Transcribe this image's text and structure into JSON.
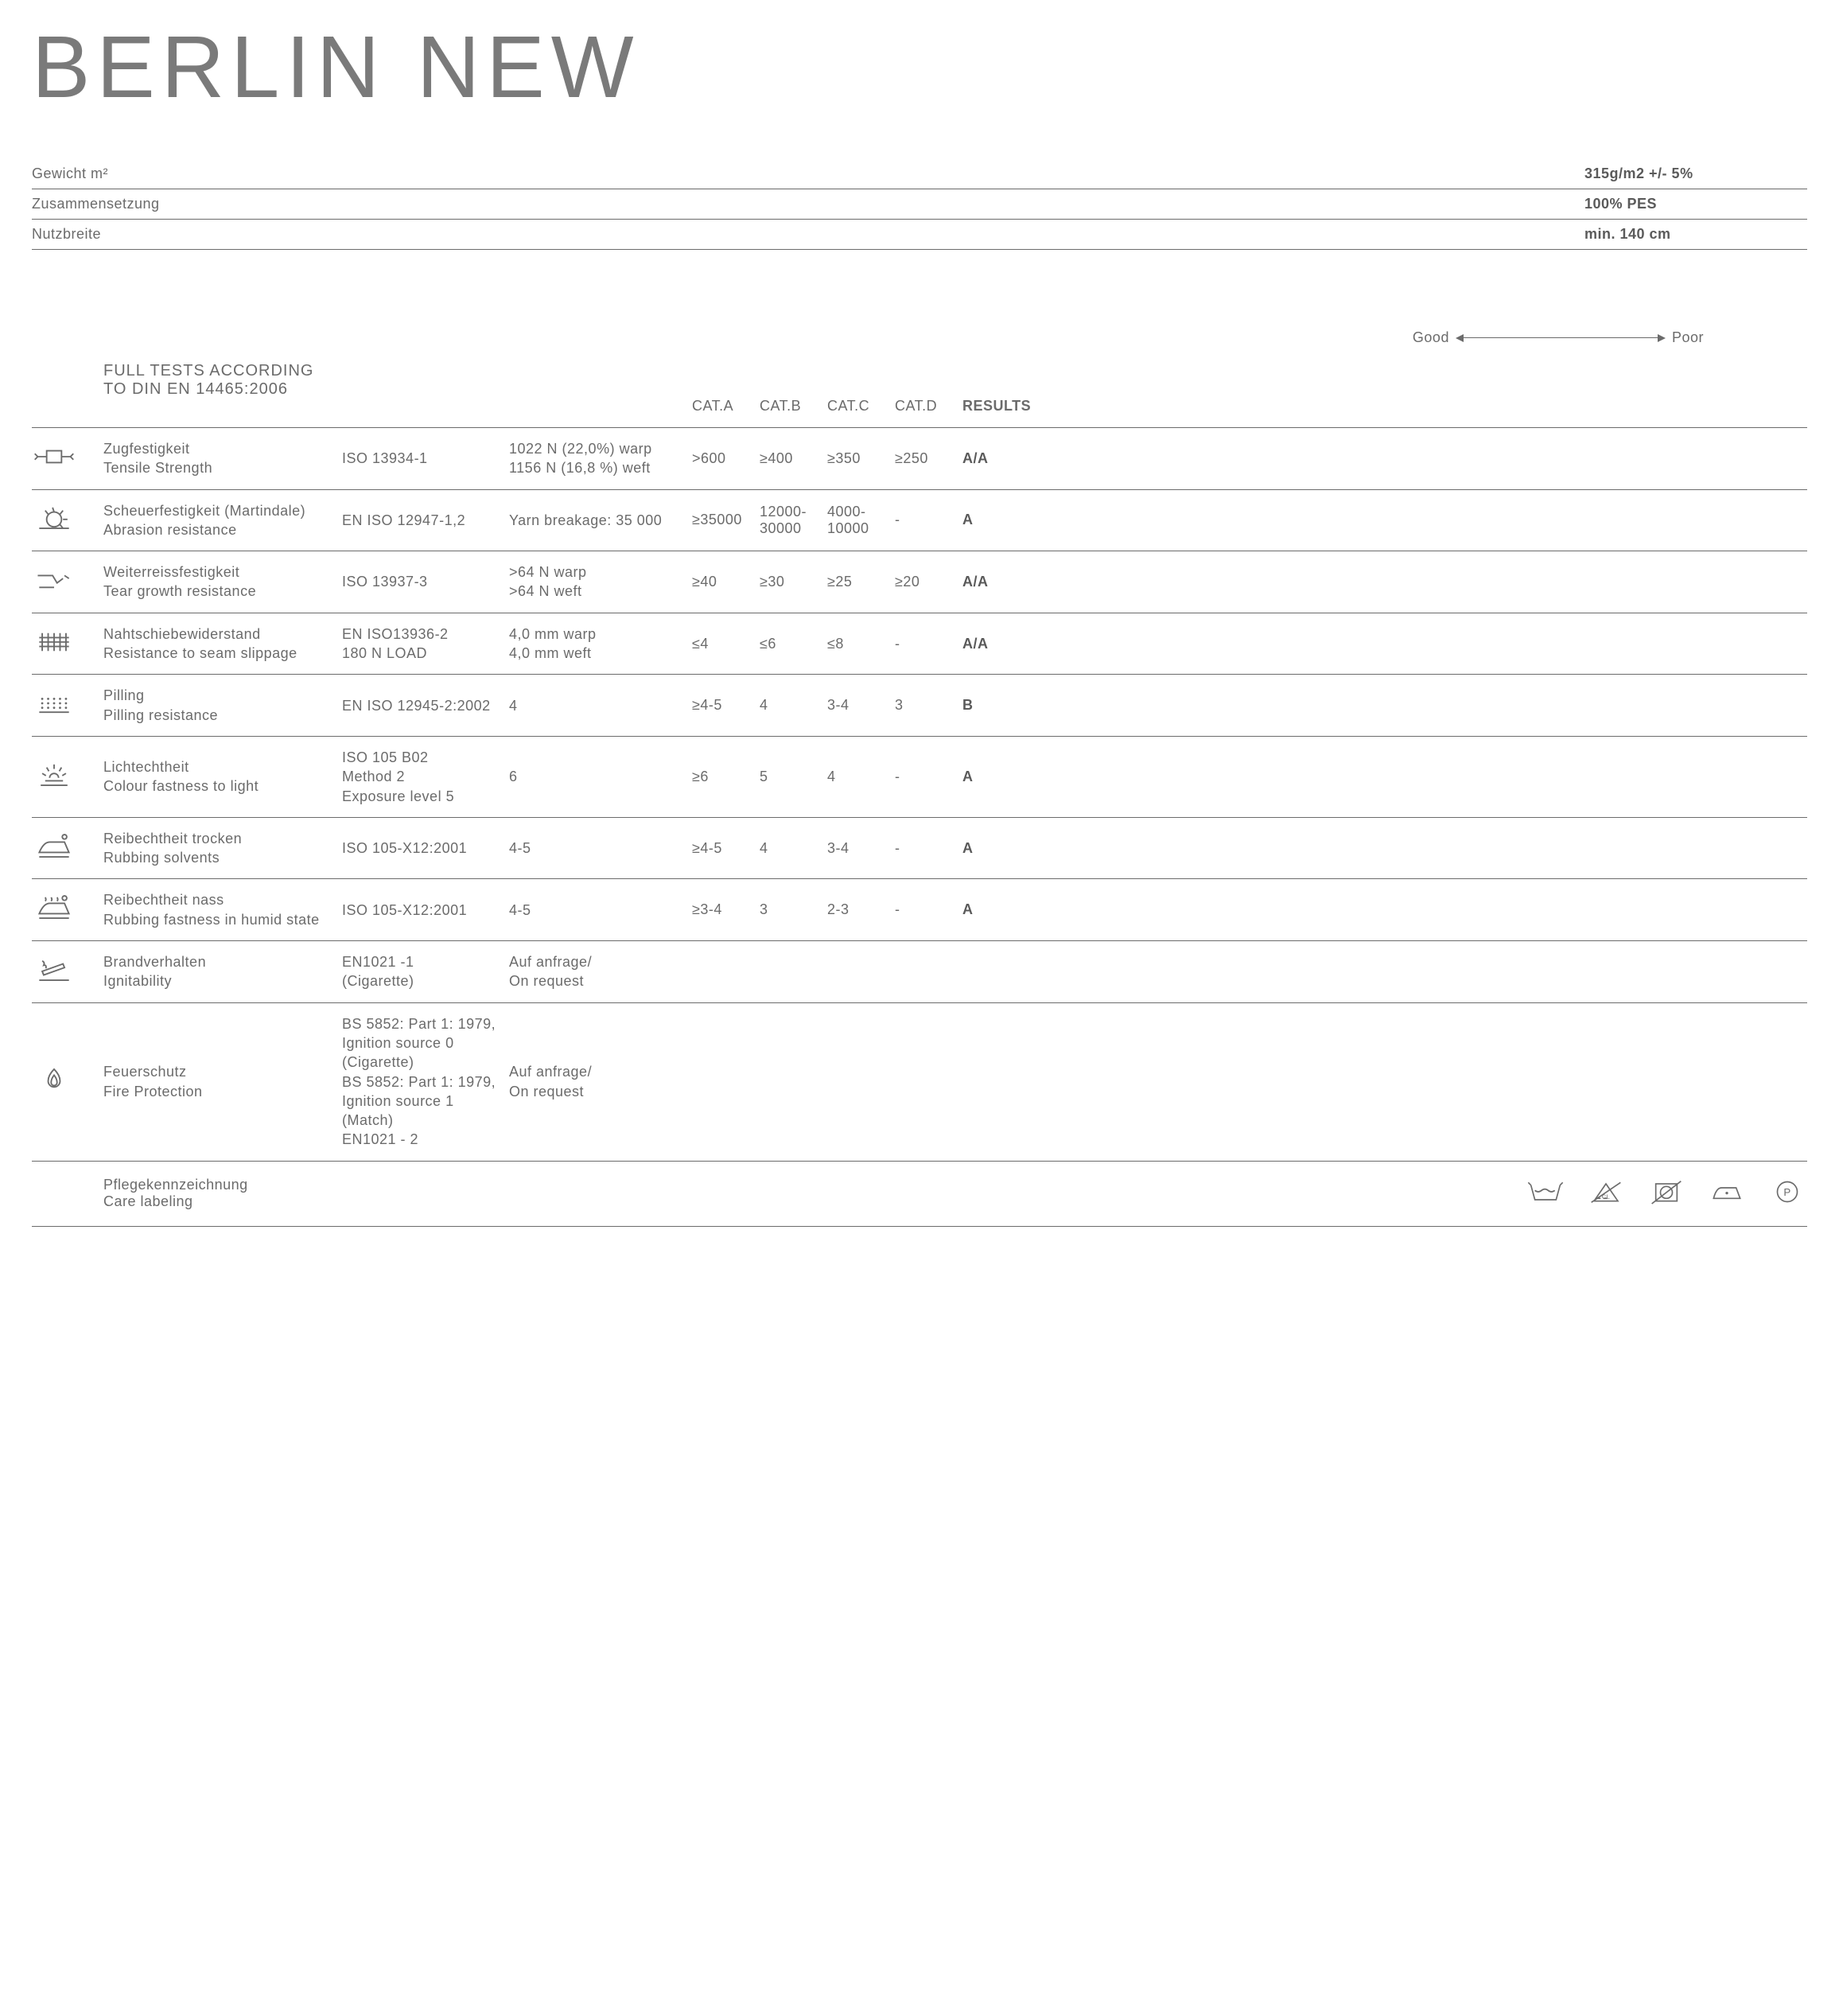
{
  "title": "BERLIN NEW",
  "specs": [
    {
      "label": "Gewicht m²",
      "value": "315g/m2 +/- 5%"
    },
    {
      "label": "Zusammensetzung",
      "value": "100% PES"
    },
    {
      "label": "Nutzbreite",
      "value": "min. 140 cm"
    }
  ],
  "goodLabel": "Good",
  "poorLabel": "Poor",
  "testsTitle": "FULL TESTS ACCORDING TO DIN EN 14465:2006",
  "headers": {
    "catA": "CAT.A",
    "catB": "CAT.B",
    "catC": "CAT.C",
    "catD": "CAT.D",
    "results": "RESULTS"
  },
  "tests": [
    {
      "icon": "tensile",
      "nameDe": "Zugfestigkeit",
      "nameEn": "Tensile Strength",
      "standard": "ISO 13934-1",
      "value": "1022 N (22,0%) warp\n1156 N (16,8 %) weft",
      "catA": ">600",
      "catB": "≥400",
      "catC": "≥350",
      "catD": "≥250",
      "result": "A/A"
    },
    {
      "icon": "abrasion",
      "nameDe": "Scheuerfestigkeit (Martindale)",
      "nameEn": "Abrasion resistance",
      "standard": "EN ISO 12947-1,2",
      "value": "Yarn breakage: 35 000",
      "catA": "≥35000",
      "catB": "12000-30000",
      "catC": "4000-10000",
      "catD": "-",
      "result": "A"
    },
    {
      "icon": "tear",
      "nameDe": "Weiterreissfestigkeit",
      "nameEn": "Tear growth resistance",
      "standard": "ISO 13937-3",
      "value": ">64 N warp\n>64 N weft",
      "catA": "≥40",
      "catB": "≥30",
      "catC": "≥25",
      "catD": "≥20",
      "result": "A/A"
    },
    {
      "icon": "seam",
      "nameDe": "Nahtschiebewiderstand",
      "nameEn": "Resistance to seam slippage",
      "standard": "EN ISO13936-2\n180 N LOAD",
      "value": "4,0 mm warp\n4,0 mm weft",
      "catA": "≤4",
      "catB": "≤6",
      "catC": "≤8",
      "catD": "-",
      "result": "A/A"
    },
    {
      "icon": "pilling",
      "nameDe": "Pilling",
      "nameEn": "Pilling resistance",
      "standard": "EN ISO 12945-2:2002",
      "value": "4",
      "catA": "≥4-5",
      "catB": "4",
      "catC": "3-4",
      "catD": "3",
      "result": "B"
    },
    {
      "icon": "light",
      "nameDe": "Lichtechtheit",
      "nameEn": "Colour fastness to light",
      "standard": "ISO 105 B02\nMethod 2\nExposure level 5",
      "value": "6",
      "catA": "≥6",
      "catB": "5",
      "catC": "4",
      "catD": "-",
      "result": "A"
    },
    {
      "icon": "rubdry",
      "nameDe": "Reibechtheit trocken",
      "nameEn": "Rubbing solvents",
      "standard": "ISO 105-X12:2001",
      "value": "4-5",
      "catA": "≥4-5",
      "catB": "4",
      "catC": "3-4",
      "catD": "-",
      "result": "A"
    },
    {
      "icon": "rubwet",
      "nameDe": "Reibechtheit nass",
      "nameEn": "Rubbing fastness in humid state",
      "standard": "ISO 105-X12:2001",
      "value": "4-5",
      "catA": "≥3-4",
      "catB": "3",
      "catC": "2-3",
      "catD": "-",
      "result": "A"
    },
    {
      "icon": "cigarette",
      "nameDe": "Brandverhalten",
      "nameEn": "Ignitability",
      "standard": "EN1021 -1\n (Cigarette)",
      "value": "Auf anfrage/\n On request",
      "catA": "",
      "catB": "",
      "catC": "",
      "catD": "",
      "result": ""
    },
    {
      "icon": "fire",
      "nameDe": "Feuerschutz",
      "nameEn": "Fire Protection",
      "standard": "BS 5852: Part 1: 1979,\nIgnition source 0\n(Cigarette)\nBS 5852: Part 1: 1979,\nIgnition source 1\n(Match)\nEN1021 - 2",
      "value": "Auf anfrage/\n On request",
      "catA": "",
      "catB": "",
      "catC": "",
      "catD": "",
      "result": ""
    }
  ],
  "care": {
    "nameDe": "Pflegekennzeichnung",
    "nameEn": "Care labeling",
    "icons": [
      "wash",
      "no-bleach",
      "no-tumble",
      "iron",
      "dryclean-p"
    ]
  },
  "colors": {
    "text": "#6b6b6b",
    "background": "#ffffff",
    "border": "#6b6b6b"
  }
}
